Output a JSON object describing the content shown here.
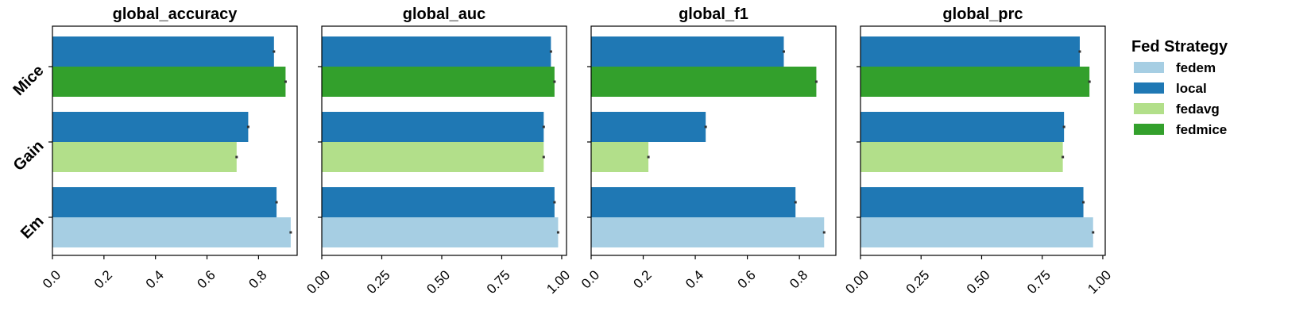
{
  "legend": {
    "title": "Fed Strategy",
    "placement": "right",
    "items": [
      {
        "label": "fedem",
        "color": "#a6cee3"
      },
      {
        "label": "local",
        "color": "#1f78b4"
      },
      {
        "label": "fedavg",
        "color": "#b2df8a"
      },
      {
        "label": "fedmice",
        "color": "#33a02c"
      }
    ]
  },
  "chart_data": [
    {
      "type": "bar",
      "orientation": "horizontal",
      "title": "global_accuracy",
      "xlim": [
        0,
        0.95
      ],
      "xticks": [
        0.0,
        0.2,
        0.4,
        0.6,
        0.8
      ],
      "xtick_labels": [
        "0.0",
        "0.2",
        "0.4",
        "0.6",
        "0.8"
      ],
      "categories": [
        "Mice",
        "Gain",
        "Em"
      ],
      "bars": [
        {
          "category": "Mice",
          "strategy": "local",
          "value": 0.86
        },
        {
          "category": "Mice",
          "strategy": "fedmice",
          "value": 0.905
        },
        {
          "category": "Gain",
          "strategy": "local",
          "value": 0.76
        },
        {
          "category": "Gain",
          "strategy": "fedavg",
          "value": 0.715
        },
        {
          "category": "Em",
          "strategy": "local",
          "value": 0.87
        },
        {
          "category": "Em",
          "strategy": "fedem",
          "value": 0.925
        }
      ]
    },
    {
      "type": "bar",
      "orientation": "horizontal",
      "title": "global_auc",
      "xlim": [
        0,
        1.02
      ],
      "xticks": [
        0.0,
        0.25,
        0.5,
        0.75,
        1.0
      ],
      "xtick_labels": [
        "0.00",
        "0.25",
        "0.50",
        "0.75",
        "1.00"
      ],
      "categories": [
        "Mice",
        "Gain",
        "Em"
      ],
      "bars": [
        {
          "category": "Mice",
          "strategy": "local",
          "value": 0.955
        },
        {
          "category": "Mice",
          "strategy": "fedmice",
          "value": 0.97
        },
        {
          "category": "Gain",
          "strategy": "local",
          "value": 0.925
        },
        {
          "category": "Gain",
          "strategy": "fedavg",
          "value": 0.925
        },
        {
          "category": "Em",
          "strategy": "local",
          "value": 0.97
        },
        {
          "category": "Em",
          "strategy": "fedem",
          "value": 0.985
        }
      ]
    },
    {
      "type": "bar",
      "orientation": "horizontal",
      "title": "global_f1",
      "xlim": [
        0,
        0.94
      ],
      "xticks": [
        0.0,
        0.2,
        0.4,
        0.6,
        0.8
      ],
      "xtick_labels": [
        "0.0",
        "0.2",
        "0.4",
        "0.6",
        "0.8"
      ],
      "categories": [
        "Mice",
        "Gain",
        "Em"
      ],
      "bars": [
        {
          "category": "Mice",
          "strategy": "local",
          "value": 0.74
        },
        {
          "category": "Mice",
          "strategy": "fedmice",
          "value": 0.865
        },
        {
          "category": "Gain",
          "strategy": "local",
          "value": 0.44
        },
        {
          "category": "Gain",
          "strategy": "fedavg",
          "value": 0.22
        },
        {
          "category": "Em",
          "strategy": "local",
          "value": 0.785
        },
        {
          "category": "Em",
          "strategy": "fedem",
          "value": 0.895
        }
      ]
    },
    {
      "type": "bar",
      "orientation": "horizontal",
      "title": "global_prc",
      "xlim": [
        0,
        1.01
      ],
      "xticks": [
        0.0,
        0.25,
        0.5,
        0.75,
        1.0
      ],
      "xtick_labels": [
        "0.00",
        "0.25",
        "0.50",
        "0.75",
        "1.00"
      ],
      "categories": [
        "Mice",
        "Gain",
        "Em"
      ],
      "bars": [
        {
          "category": "Mice",
          "strategy": "local",
          "value": 0.905
        },
        {
          "category": "Mice",
          "strategy": "fedmice",
          "value": 0.945
        },
        {
          "category": "Gain",
          "strategy": "local",
          "value": 0.84
        },
        {
          "category": "Gain",
          "strategy": "fedavg",
          "value": 0.835
        },
        {
          "category": "Em",
          "strategy": "local",
          "value": 0.92
        },
        {
          "category": "Em",
          "strategy": "fedem",
          "value": 0.96
        }
      ]
    }
  ]
}
